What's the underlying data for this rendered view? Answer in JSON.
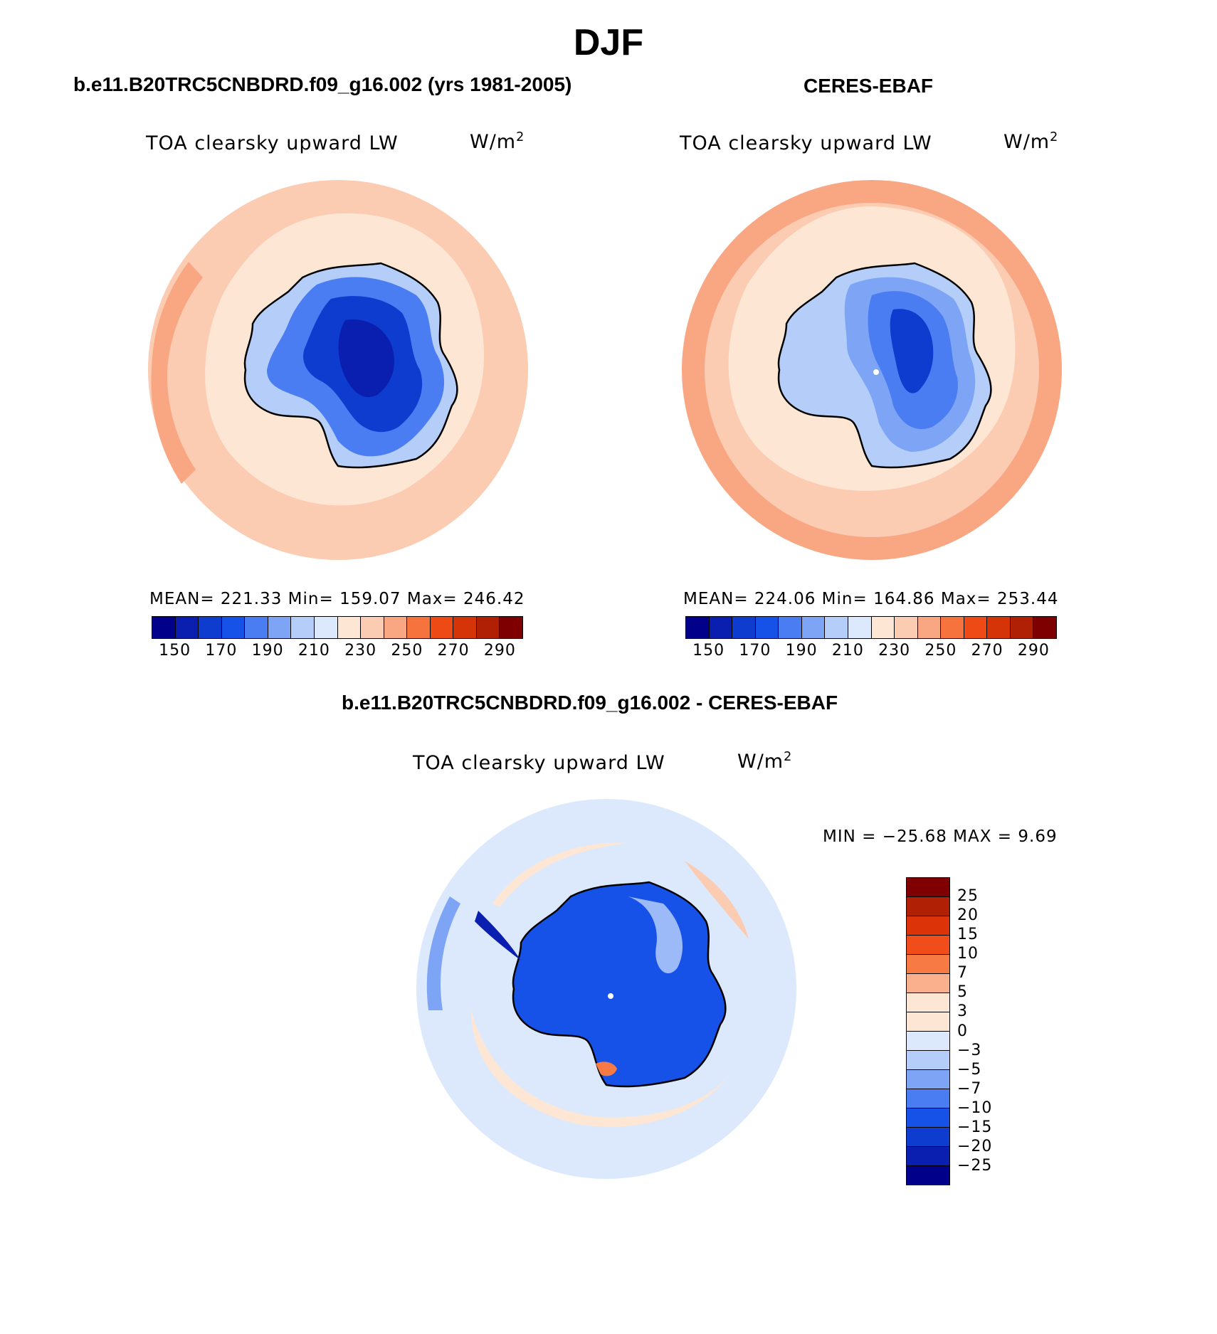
{
  "title": "DJF",
  "panel_left": {
    "case_title": "b.e11.B20TRC5CNBDRD.f09_g16.002 (yrs 1981-2005)",
    "variable": "TOA clearsky upward LW",
    "units_base": "W/m",
    "units_exp": "2",
    "stats": "MEAN= 221.33   Min= 159.07   Max= 246.42"
  },
  "panel_right": {
    "case_title": "CERES-EBAF",
    "variable": "TOA clearsky upward LW",
    "units_base": "W/m",
    "units_exp": "2",
    "stats": "MEAN= 224.06   Min= 164.86   Max= 253.44"
  },
  "panel_diff": {
    "case_title": "b.e11.B20TRC5CNBDRD.f09_g16.002 - CERES-EBAF",
    "variable": "TOA clearsky upward LW",
    "units_base": "W/m",
    "units_exp": "2",
    "stats": "MIN = −25.68 MAX =     9.69"
  },
  "colors": {
    "main_scale": [
      "#00008a",
      "#0a1faf",
      "#0d3ccf",
      "#1652e8",
      "#4a7df2",
      "#7ea5f5",
      "#b4cdf9",
      "#dce9fc",
      "#fde7d4",
      "#fbcbb2",
      "#f9a683",
      "#f7733e",
      "#ee4a15",
      "#d43408",
      "#b02004",
      "#7f0000"
    ],
    "diff_scale": [
      "#7f0000",
      "#b02004",
      "#dc3309",
      "#f04d1a",
      "#f77a45",
      "#fab08c",
      "#fde7d4",
      "#dce9fc",
      "#b4cdf9",
      "#7ea5f5",
      "#4a7df2",
      "#1652e8",
      "#0d3ccf",
      "#0a1faf",
      "#00008a"
    ]
  },
  "colorbar_main_ticks": [
    "150",
    "170",
    "190",
    "210",
    "230",
    "250",
    "270",
    "290"
  ],
  "colorbar_diff_ticks": [
    "25",
    "20",
    "15",
    "10",
    "7",
    "5",
    "3",
    "0",
    "−3",
    "−5",
    "−7",
    "−10",
    "−15",
    "−20",
    "−25"
  ]
}
